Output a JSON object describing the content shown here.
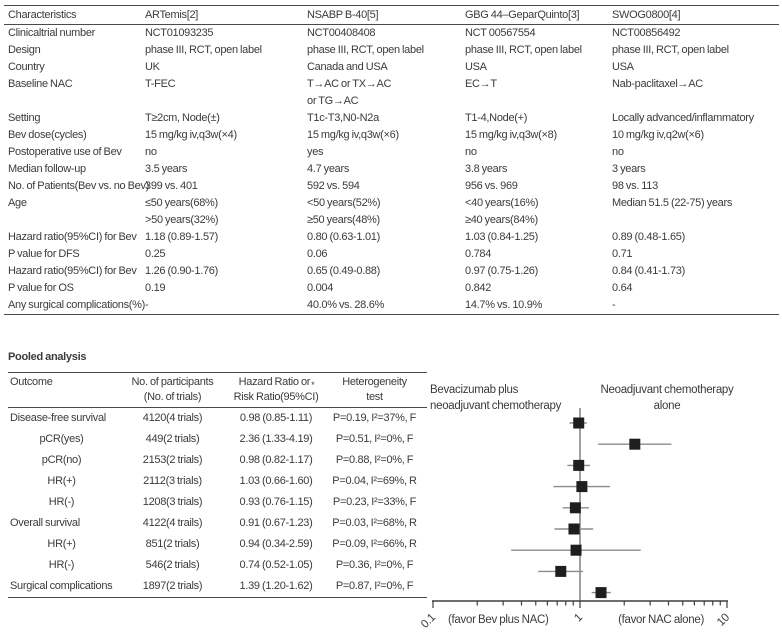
{
  "page": {
    "background": "#ffffff",
    "text_color": "#3b3b3b",
    "rule_color": "#4a4a4a"
  },
  "trial_table": {
    "columns": [
      "Characteristics",
      "ARTemis[2]",
      "NSABP B-40[5]",
      "GBG 44–GeparQuinto[3]",
      "SWOG0800[4]"
    ],
    "rows": [
      [
        "Clinicaltrial number",
        "NCT01093235",
        "NCT00408408",
        "NCT 00567554",
        "NCT00856492"
      ],
      [
        "Design",
        "phase III, RCT, open label",
        "phase III, RCT, open label",
        "phase III, RCT, open label",
        "phase III, RCT, open label"
      ],
      [
        "Country",
        "UK",
        "Canada and USA",
        "USA",
        "USA"
      ],
      [
        "Baseline NAC",
        "T-FEC",
        "T→AC or TX→AC\nor TG→AC",
        "EC→T",
        "Nab-paclitaxel→AC"
      ],
      [
        "Setting",
        "T≥2cm, Node(±)",
        "T1c-T3,N0-N2a",
        "T1-4,Node(+)",
        "Locally advanced/inflammatory"
      ],
      [
        "Bev dose(cycles)",
        "15 mg/kg iv,q3w(×4)",
        "15 mg/kg iv,q3w(×6)",
        "15 mg/kg iv,q3w(×8)",
        "10 mg/kg iv,q2w(×6)"
      ],
      [
        "Postoperative use of Bev",
        "no",
        "yes",
        "no",
        "no"
      ],
      [
        "Median follow-up",
        "3.5 years",
        "4.7 years",
        "3.8 years",
        "3 years"
      ],
      [
        "No. of Patients(Bev vs. no Bev)",
        "399 vs. 401",
        "592 vs. 594",
        "956 vs. 969",
        "98 vs. 113"
      ],
      [
        "Age",
        "≤50 years(68%)\n>50 years(32%)",
        "<50 years(52%)\n≥50 years(48%)",
        "<40 years(16%)\n≥40 years(84%)",
        "Median 51.5 (22-75) years"
      ],
      [
        "Hazard ratio(95%CI) for Bev",
        "1.18 (0.89-1.57)",
        "0.80 (0.63-1.01)",
        "1.03 (0.84-1.25)",
        "0.89 (0.48-1.65)"
      ],
      [
        "P value for DFS",
        "0.25",
        "0.06",
        "0.784",
        "0.71"
      ],
      [
        "Hazard ratio(95%CI) for Bev",
        "1.26 (0.90-1.76)",
        "0.65 (0.49-0.88)",
        "0.97 (0.75-1.26)",
        "0.84 (0.41-1.73)"
      ],
      [
        "P value for OS",
        "0.19",
        "0.004",
        "0.842",
        "0.64"
      ],
      [
        "Any surgical complications(%)",
        "-",
        "40.0% vs. 28.6%",
        "14.7% vs. 10.9%",
        "-"
      ]
    ]
  },
  "pooled_analysis": {
    "title": "Pooled analysis",
    "header": {
      "outcome": "Outcome",
      "participants_line1": "No. of participants",
      "participants_line2": "(No. of trials)",
      "ratio_line1": "Hazard Ratio or",
      "ratio_star": "*",
      "ratio_line2": "Risk Ratio(95%CI)",
      "het_line1": "Heterogeneity",
      "het_line2": "test"
    },
    "rows": [
      {
        "outcome": "Disease-free survival",
        "indent": false,
        "participants": "4120(4 trials)",
        "ratio": "0.98 (0.85-1.11)",
        "heterogeneity": "P=0.19, I²=37%, F"
      },
      {
        "outcome": "pCR(yes)",
        "indent": true,
        "participants": "449(2 trials)",
        "ratio": "2.36 (1.33-4.19)",
        "heterogeneity": "P=0.51, I²=0%, F"
      },
      {
        "outcome": "pCR(no)",
        "indent": true,
        "participants": "2153(2 trials)",
        "ratio": "0.98 (0.82-1.17)",
        "heterogeneity": "P=0.88, I²=0%, F"
      },
      {
        "outcome": "HR(+)",
        "indent": true,
        "participants": "2112(3 trials)",
        "ratio": "1.03 (0.66-1.60)",
        "heterogeneity": "P=0.04, I²=69%, R"
      },
      {
        "outcome": "HR(-)",
        "indent": true,
        "participants": "1208(3 trials)",
        "ratio": "0.93 (0.76-1.15)",
        "heterogeneity": "P=0.23, I²=33%, F"
      },
      {
        "outcome": "Overall survival",
        "indent": false,
        "participants": "4122(4 trails)",
        "ratio": "0.91 (0.67-1.23)",
        "heterogeneity": "P=0.03, I²=68%, R"
      },
      {
        "outcome": "HR(+)",
        "indent": true,
        "participants": "851(2 trials)",
        "ratio": "0.94 (0.34-2.59)",
        "heterogeneity": "P=0.09, I²=66%, R"
      },
      {
        "outcome": "HR(-)",
        "indent": true,
        "participants": "546(2 trials)",
        "ratio": "0.74 (0.52-1.05)",
        "heterogeneity": "P=0.36, I²=0%, F"
      },
      {
        "outcome": "Surgical complications",
        "indent": false,
        "participants": "1897(2 trials)",
        "ratio": "1.39 (1.20-1.62)",
        "heterogeneity": "P=0.87, I²=0%, F"
      }
    ]
  },
  "chart_data": {
    "type": "forest",
    "x_scale": "log",
    "x_range": [
      0.1,
      10
    ],
    "x_ticks_labeled": [
      "0.1",
      "1",
      "10"
    ],
    "reference_line": 1,
    "group_label_left": "Bevacizumab plus\nneoadjuvant chemotherapy",
    "group_label_right": "Neoadjuvant chemotherapy\nalone",
    "axis_note_left": "(favor Bev plus NAC)",
    "axis_note_right": "(favor NAC alone)",
    "marker_color": "#1e1e1e",
    "ci_line_color": "#8c8c8c",
    "axis_color": "#3f3f3f",
    "rows": [
      {
        "label": "Disease-free survival",
        "estimate": 0.98,
        "ci_low": 0.85,
        "ci_high": 1.11
      },
      {
        "label": "pCR(yes)",
        "estimate": 2.36,
        "ci_low": 1.33,
        "ci_high": 4.19
      },
      {
        "label": "pCR(no)",
        "estimate": 0.98,
        "ci_low": 0.82,
        "ci_high": 1.17
      },
      {
        "label": "HR(+) DFS",
        "estimate": 1.03,
        "ci_low": 0.66,
        "ci_high": 1.6
      },
      {
        "label": "HR(-) DFS",
        "estimate": 0.93,
        "ci_low": 0.76,
        "ci_high": 1.15
      },
      {
        "label": "Overall survival",
        "estimate": 0.91,
        "ci_low": 0.67,
        "ci_high": 1.23
      },
      {
        "label": "HR(+) OS",
        "estimate": 0.94,
        "ci_low": 0.34,
        "ci_high": 2.59
      },
      {
        "label": "HR(-) OS",
        "estimate": 0.74,
        "ci_low": 0.52,
        "ci_high": 1.05
      },
      {
        "label": "Surgical complications",
        "estimate": 1.39,
        "ci_low": 1.2,
        "ci_high": 1.62
      }
    ]
  }
}
